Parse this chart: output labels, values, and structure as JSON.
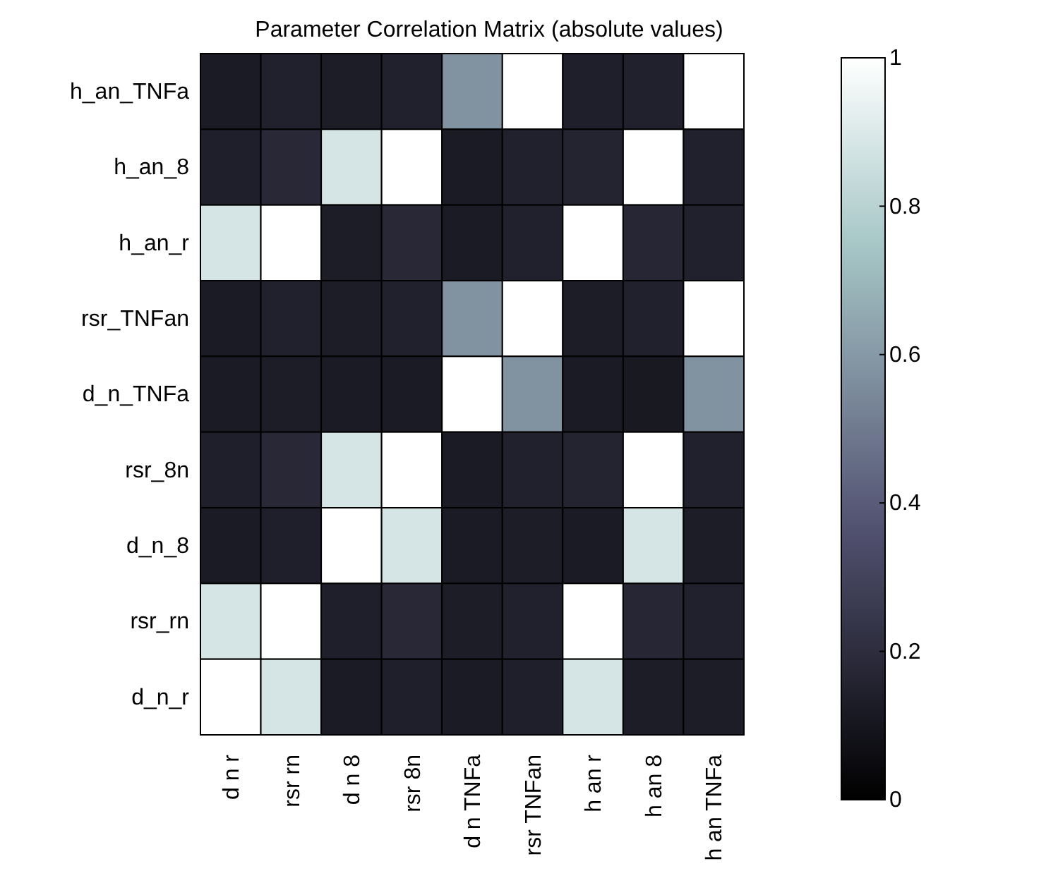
{
  "chart_data": {
    "type": "heatmap",
    "title": "Parameter Correlation Matrix (absolute values)",
    "categories": [
      "d n r",
      "rsr rn",
      "d n 8",
      "rsr 8n",
      "d n TNFa",
      "rsr TNFan",
      "h an r",
      "h an 8",
      "h an TNFa"
    ],
    "y_categories": [
      "h_an_TNFa",
      "h_an_8",
      "h_an_r",
      "rsr_TNFan",
      "d_n_TNFa",
      "rsr_8n",
      "d_n_8",
      "rsr_rn",
      "d_n_r"
    ],
    "cells": [
      [
        0.12,
        0.15,
        0.13,
        0.15,
        0.58,
        1,
        0.14,
        0.15,
        1
      ],
      [
        0.14,
        0.18,
        0.88,
        1,
        0.12,
        0.15,
        0.16,
        1,
        0.15
      ],
      [
        0.88,
        1,
        0.13,
        0.18,
        0.12,
        0.15,
        1,
        0.17,
        0.15
      ],
      [
        0.12,
        0.15,
        0.13,
        0.15,
        0.58,
        1,
        0.13,
        0.15,
        1
      ],
      [
        0.12,
        0.13,
        0.12,
        0.12,
        1,
        0.58,
        0.12,
        0.11,
        0.58
      ],
      [
        0.14,
        0.18,
        0.88,
        1,
        0.12,
        0.15,
        0.16,
        1,
        0.15
      ],
      [
        0.12,
        0.14,
        1,
        0.88,
        0.12,
        0.13,
        0.12,
        0.88,
        0.13
      ],
      [
        0.88,
        1,
        0.14,
        0.18,
        0.13,
        0.15,
        1,
        0.17,
        0.15
      ],
      [
        1,
        0.88,
        0.12,
        0.14,
        0.12,
        0.14,
        0.88,
        0.13,
        0.13
      ]
    ],
    "clim": [
      0,
      1
    ],
    "cticks": [
      0,
      0.2,
      0.4,
      0.6,
      0.8,
      1
    ]
  }
}
